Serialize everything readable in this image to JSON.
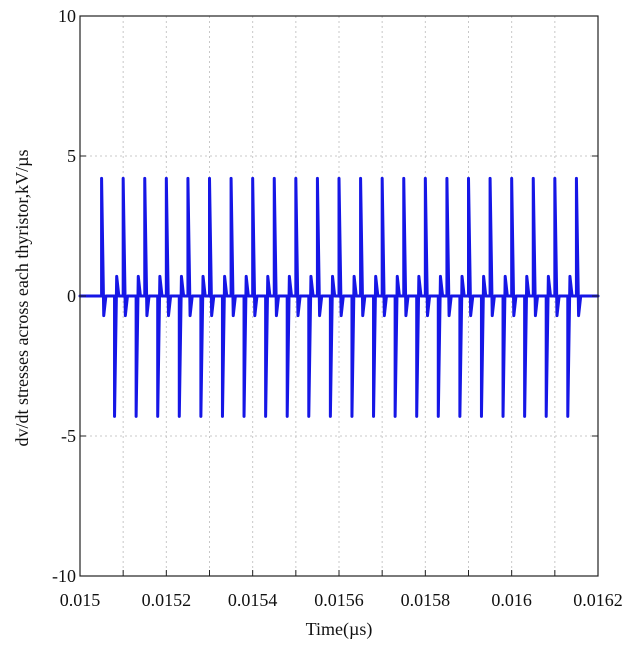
{
  "chart_data": {
    "type": "line",
    "title": "",
    "xlabel": "Time(µs)",
    "ylabel": "dv/dt stresses across each thyristor,kV/µs",
    "xlim": [
      0.015,
      0.0162
    ],
    "ylim": [
      -10,
      10
    ],
    "x_ticks": [
      0.015,
      0.0151,
      0.0152,
      0.0153,
      0.0154,
      0.0155,
      0.0156,
      0.0157,
      0.0158,
      0.0159,
      0.016,
      0.0161,
      0.0162
    ],
    "x_tick_labels": [
      "0.015",
      "0.0152",
      "0.0154",
      "0.0156",
      "0.0158",
      "0.016",
      "0.0162"
    ],
    "x_tick_label_values": [
      0.015,
      0.0152,
      0.0154,
      0.0156,
      0.0158,
      0.016,
      0.0162
    ],
    "y_ticks": [
      -10,
      -5,
      0,
      5,
      10
    ],
    "y_tick_labels": [
      "-10",
      "-5",
      "0",
      "5",
      "10"
    ],
    "grid": true,
    "legend": "none",
    "series": [
      {
        "color": "#1616e6",
        "points": [
          [
            0.015,
            0.0
          ],
          [
            0.01505,
            0.0
          ],
          [
            0.01505,
            4.2
          ],
          [
            0.015055,
            -0.7
          ],
          [
            0.01506,
            0.0
          ],
          [
            0.01508,
            0.0
          ],
          [
            0.01508,
            -4.3
          ],
          [
            0.015085,
            0.7
          ],
          [
            0.01509,
            0.0
          ],
          [
            0.0151,
            0.0
          ],
          [
            0.0151,
            4.2
          ],
          [
            0.015105,
            -0.7
          ],
          [
            0.01511,
            0.0
          ],
          [
            0.01513,
            0.0
          ],
          [
            0.01513,
            -4.3
          ],
          [
            0.015135,
            0.7
          ],
          [
            0.01514,
            0.0
          ],
          [
            0.01515,
            0.0
          ],
          [
            0.01515,
            4.2
          ],
          [
            0.015155,
            -0.7
          ],
          [
            0.01516,
            0.0
          ],
          [
            0.01518,
            0.0
          ],
          [
            0.01518,
            -4.3
          ],
          [
            0.015185,
            0.7
          ],
          [
            0.01519,
            0.0
          ],
          [
            0.0152,
            0.0
          ],
          [
            0.0152,
            4.2
          ],
          [
            0.015205,
            -0.7
          ],
          [
            0.01521,
            0.0
          ],
          [
            0.01523,
            0.0
          ],
          [
            0.01523,
            -4.3
          ],
          [
            0.015235,
            0.7
          ],
          [
            0.01524,
            0.0
          ],
          [
            0.01525,
            0.0
          ],
          [
            0.01525,
            4.2
          ],
          [
            0.015255,
            -0.7
          ],
          [
            0.01526,
            0.0
          ],
          [
            0.01528,
            0.0
          ],
          [
            0.01528,
            -4.3
          ],
          [
            0.015285,
            0.7
          ],
          [
            0.01529,
            0.0
          ],
          [
            0.0153,
            0.0
          ],
          [
            0.0153,
            4.2
          ],
          [
            0.015305,
            -0.7
          ],
          [
            0.01531,
            0.0
          ],
          [
            0.01533,
            0.0
          ],
          [
            0.01533,
            -4.3
          ],
          [
            0.015335,
            0.7
          ],
          [
            0.01534,
            0.0
          ],
          [
            0.01535,
            0.0
          ],
          [
            0.01535,
            4.2
          ],
          [
            0.015355,
            -0.7
          ],
          [
            0.01536,
            0.0
          ],
          [
            0.01538,
            0.0
          ],
          [
            0.01538,
            -4.3
          ],
          [
            0.015385,
            0.7
          ],
          [
            0.01539,
            0.0
          ],
          [
            0.0154,
            0.0
          ],
          [
            0.0154,
            4.2
          ],
          [
            0.015405,
            -0.7
          ],
          [
            0.01541,
            0.0
          ],
          [
            0.01543,
            0.0
          ],
          [
            0.01543,
            -4.3
          ],
          [
            0.015435,
            0.7
          ],
          [
            0.01544,
            0.0
          ],
          [
            0.01545,
            0.0
          ],
          [
            0.01545,
            4.2
          ],
          [
            0.015455,
            -0.7
          ],
          [
            0.01546,
            0.0
          ],
          [
            0.01548,
            0.0
          ],
          [
            0.01548,
            -4.3
          ],
          [
            0.015485,
            0.7
          ],
          [
            0.01549,
            0.0
          ],
          [
            0.0155,
            0.0
          ],
          [
            0.0155,
            4.2
          ],
          [
            0.015505,
            -0.7
          ],
          [
            0.01551,
            0.0
          ],
          [
            0.01553,
            0.0
          ],
          [
            0.01553,
            -4.3
          ],
          [
            0.015535,
            0.7
          ],
          [
            0.01554,
            0.0
          ],
          [
            0.01555,
            0.0
          ],
          [
            0.01555,
            4.2
          ],
          [
            0.015555,
            -0.7
          ],
          [
            0.01556,
            0.0
          ],
          [
            0.01558,
            0.0
          ],
          [
            0.01558,
            -4.3
          ],
          [
            0.015585,
            0.7
          ],
          [
            0.01559,
            0.0
          ],
          [
            0.0156,
            0.0
          ],
          [
            0.0156,
            4.2
          ],
          [
            0.015605,
            -0.7
          ],
          [
            0.01561,
            0.0
          ],
          [
            0.01563,
            0.0
          ],
          [
            0.01563,
            -4.3
          ],
          [
            0.015635,
            0.7
          ],
          [
            0.01564,
            0.0
          ],
          [
            0.01565,
            0.0
          ],
          [
            0.01565,
            4.2
          ],
          [
            0.015655,
            -0.7
          ],
          [
            0.01566,
            0.0
          ],
          [
            0.01568,
            0.0
          ],
          [
            0.01568,
            -4.3
          ],
          [
            0.015685,
            0.7
          ],
          [
            0.01569,
            0.0
          ],
          [
            0.0157,
            0.0
          ],
          [
            0.0157,
            4.2
          ],
          [
            0.015705,
            -0.7
          ],
          [
            0.01571,
            0.0
          ],
          [
            0.01573,
            0.0
          ],
          [
            0.01573,
            -4.3
          ],
          [
            0.015735,
            0.7
          ],
          [
            0.01574,
            0.0
          ],
          [
            0.01575,
            0.0
          ],
          [
            0.01575,
            4.2
          ],
          [
            0.015755,
            -0.7
          ],
          [
            0.01576,
            0.0
          ],
          [
            0.01578,
            0.0
          ],
          [
            0.01578,
            -4.3
          ],
          [
            0.015785,
            0.7
          ],
          [
            0.01579,
            0.0
          ],
          [
            0.0158,
            0.0
          ],
          [
            0.0158,
            4.2
          ],
          [
            0.015805,
            -0.7
          ],
          [
            0.01581,
            0.0
          ],
          [
            0.01583,
            0.0
          ],
          [
            0.01583,
            -4.3
          ],
          [
            0.015835,
            0.7
          ],
          [
            0.01584,
            0.0
          ],
          [
            0.01585,
            0.0
          ],
          [
            0.01585,
            4.2
          ],
          [
            0.015855,
            -0.7
          ],
          [
            0.01586,
            0.0
          ],
          [
            0.01588,
            0.0
          ],
          [
            0.01588,
            -4.3
          ],
          [
            0.015885,
            0.7
          ],
          [
            0.01589,
            0.0
          ],
          [
            0.0159,
            0.0
          ],
          [
            0.0159,
            4.2
          ],
          [
            0.015905,
            -0.7
          ],
          [
            0.01591,
            0.0
          ],
          [
            0.01593,
            0.0
          ],
          [
            0.01593,
            -4.3
          ],
          [
            0.015935,
            0.7
          ],
          [
            0.01594,
            0.0
          ],
          [
            0.01595,
            0.0
          ],
          [
            0.01595,
            4.2
          ],
          [
            0.015955,
            -0.7
          ],
          [
            0.01596,
            0.0
          ],
          [
            0.01598,
            0.0
          ],
          [
            0.01598,
            -4.3
          ],
          [
            0.015985,
            0.7
          ],
          [
            0.01599,
            0.0
          ],
          [
            0.016,
            0.0
          ],
          [
            0.016,
            4.2
          ],
          [
            0.016005,
            -0.7
          ],
          [
            0.01601,
            0.0
          ],
          [
            0.01603,
            0.0
          ],
          [
            0.01603,
            -4.3
          ],
          [
            0.016035,
            0.7
          ],
          [
            0.01604,
            0.0
          ],
          [
            0.01605,
            0.0
          ],
          [
            0.01605,
            4.2
          ],
          [
            0.016055,
            -0.7
          ],
          [
            0.01606,
            0.0
          ],
          [
            0.01608,
            0.0
          ],
          [
            0.01608,
            -4.3
          ],
          [
            0.016085,
            0.7
          ],
          [
            0.01609,
            0.0
          ],
          [
            0.0161,
            0.0
          ],
          [
            0.0161,
            4.2
          ],
          [
            0.016105,
            -0.7
          ],
          [
            0.01611,
            0.0
          ],
          [
            0.01613,
            0.0
          ],
          [
            0.01613,
            -4.3
          ],
          [
            0.016135,
            0.7
          ],
          [
            0.01614,
            0.0
          ],
          [
            0.01615,
            0.0
          ],
          [
            0.01615,
            4.2
          ],
          [
            0.016155,
            -0.7
          ],
          [
            0.01616,
            0.0
          ],
          [
            0.0162,
            0.0
          ]
        ]
      }
    ]
  }
}
